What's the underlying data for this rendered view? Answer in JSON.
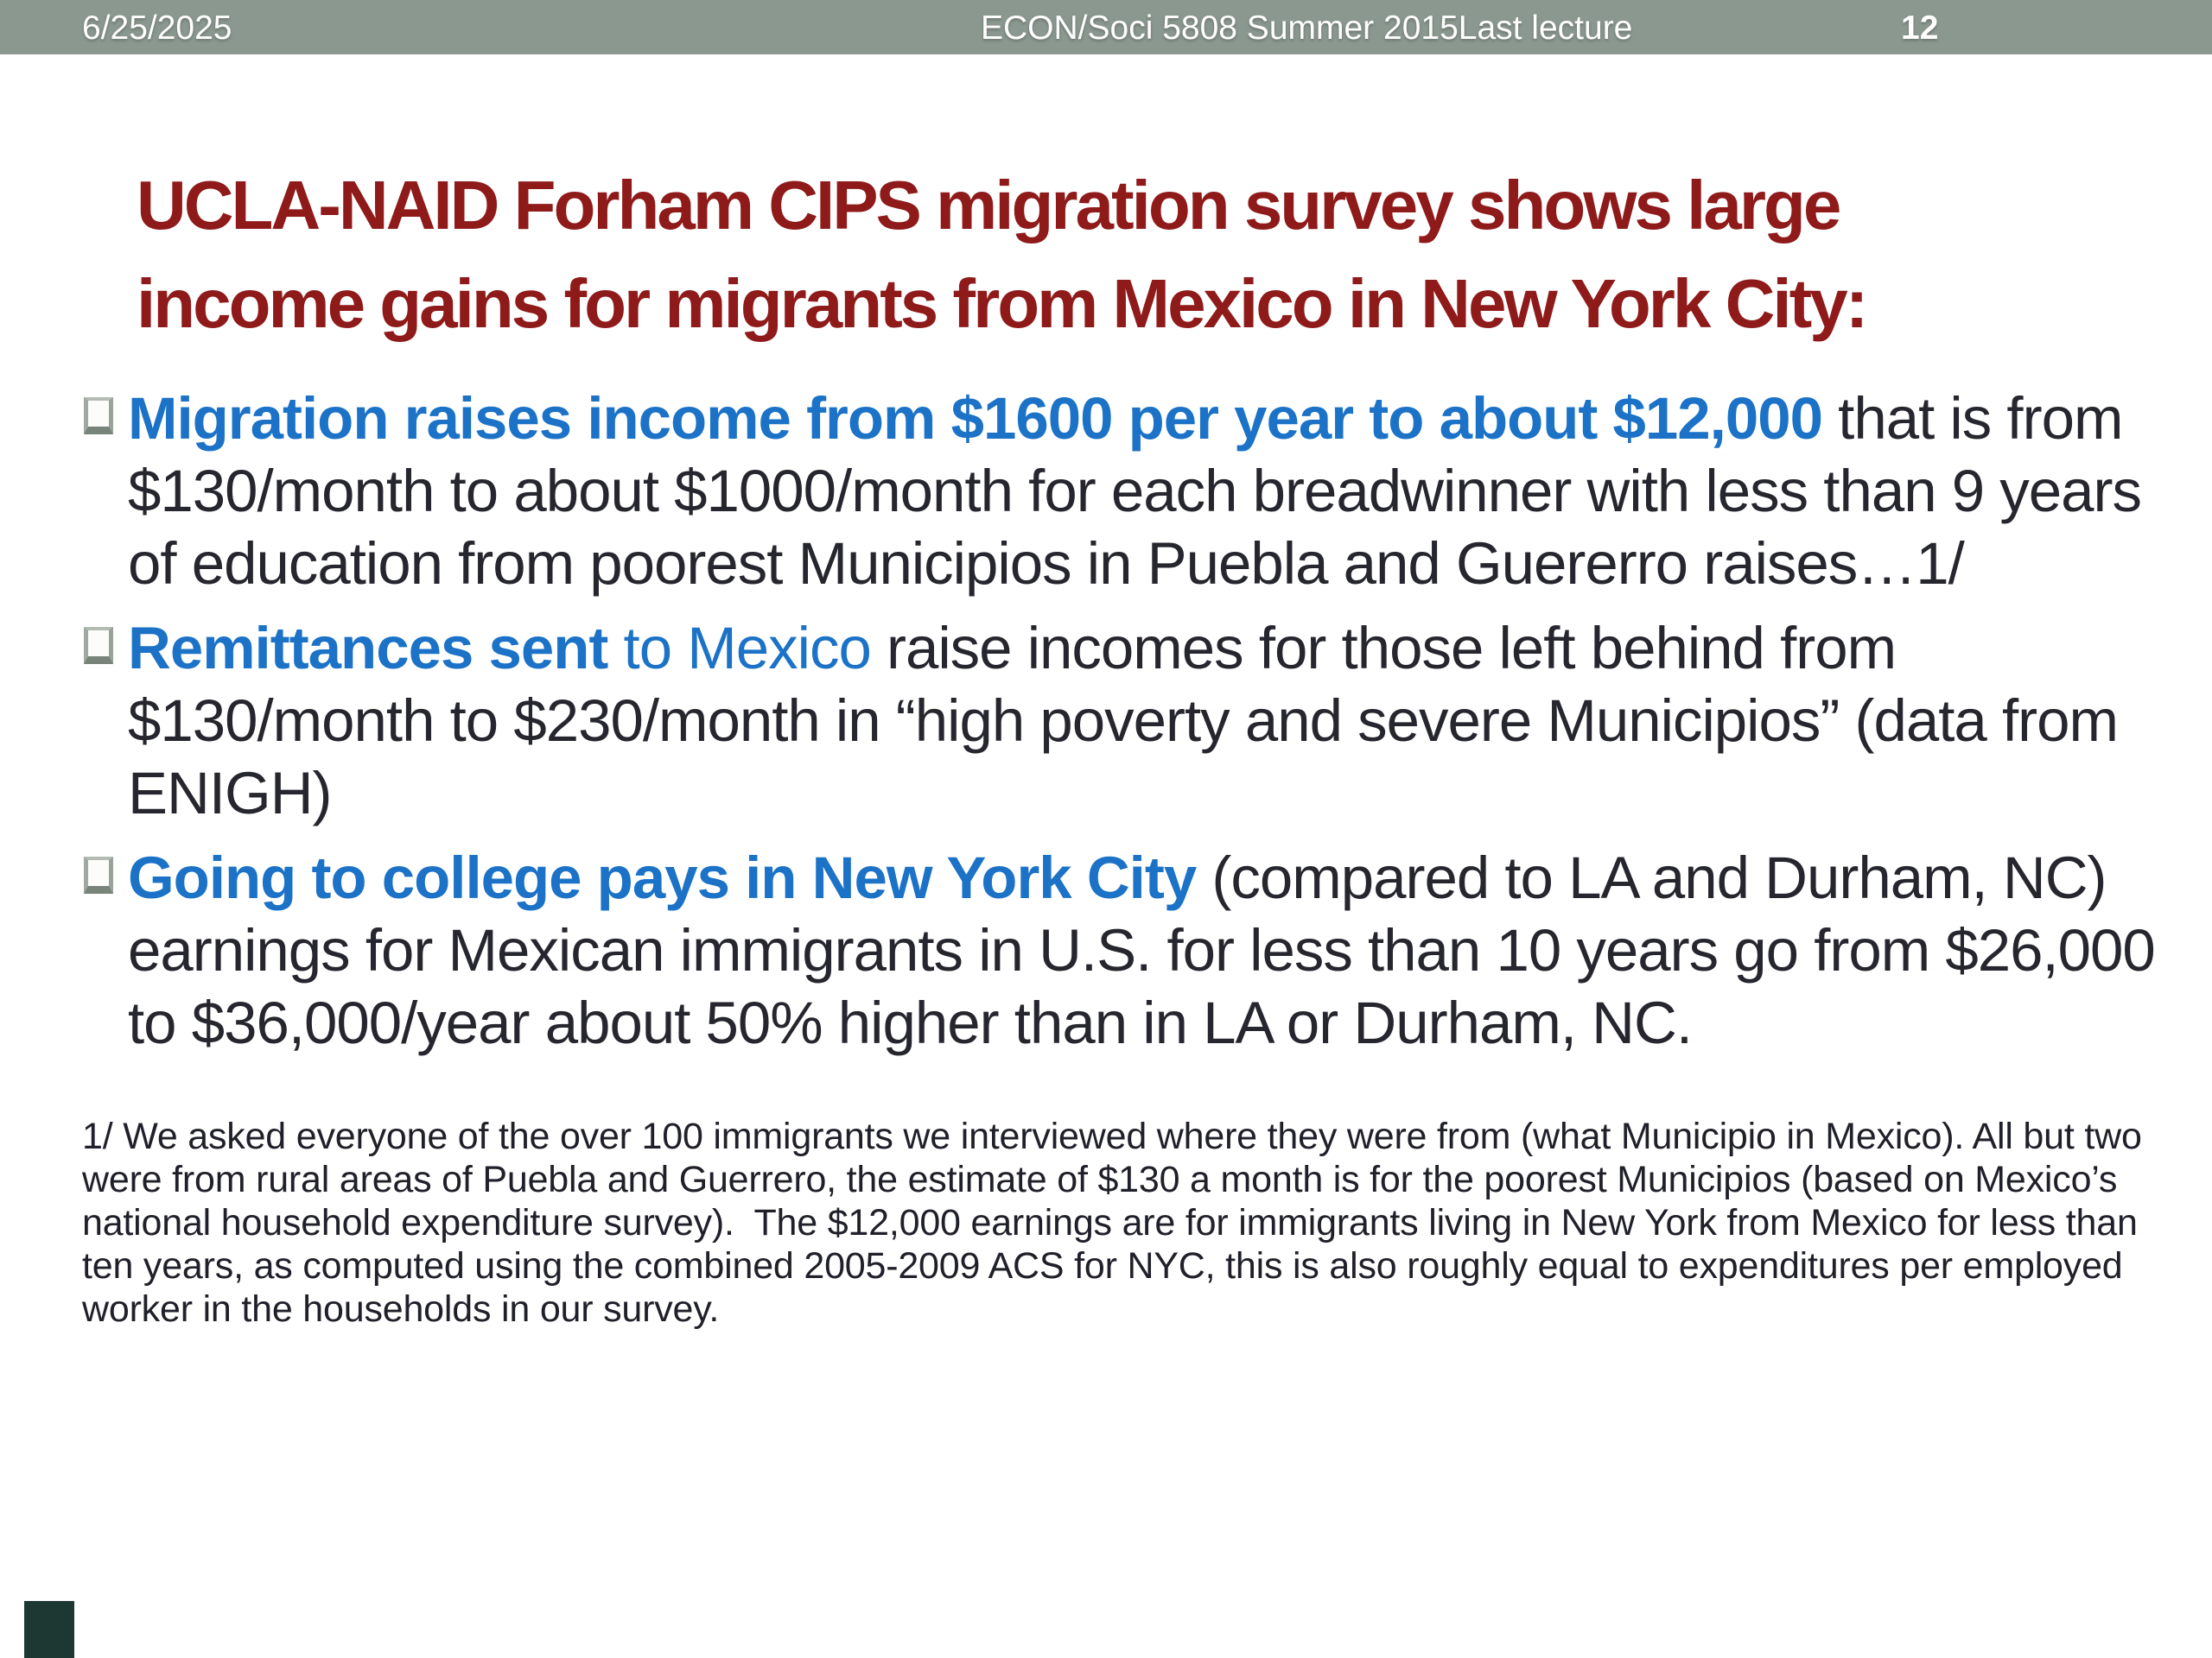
{
  "header": {
    "date": "6/25/2025",
    "course": "ECON/Soci 5808 Summer 2015Last lecture",
    "page_number": "12"
  },
  "title": {
    "lines": [
      "UCLA-NAID Forham CIPS migration survey shows large",
      "income gains for migrants from Mexico in New York City:"
    ]
  },
  "bullets": [
    {
      "segments": [
        {
          "style": "bold-blue",
          "text": "Migration raises income from $1600 per year to about $12,000"
        },
        {
          "style": "plain",
          "text": " that is from $130/month to about $1000/month for each breadwinner with less than 9 years of education from poorest Municipios in Puebla and Guererro raises…1/"
        }
      ]
    },
    {
      "segments": [
        {
          "style": "bold-blue",
          "text": "Remittances sent"
        },
        {
          "style": "blue",
          "text": " to Mexico "
        },
        {
          "style": "plain",
          "text": "raise incomes for those left behind from $130/month to $230/month in “high poverty and severe Municipios” (data from ENIGH)"
        }
      ]
    },
    {
      "segments": [
        {
          "style": "bold-blue",
          "text": "Going to college pays in New York City"
        },
        {
          "style": "plain",
          "text": " (compared to LA and Durham, NC) earnings for Mexican immigrants in U.S. for less than 10 years go from $26,000 to $36,000/year about 50% higher than in LA or Durham, NC."
        }
      ]
    }
  ],
  "footnote": "1/ We asked everyone of the over 100 immigrants we interviewed where they were from (what Municipio in Mexico). All but two were from rural areas of Puebla and Guerrero, the estimate of $130 a month is for the poorest Municipios (based on Mexico’s national household expenditure survey).  The $12,000 earnings are for immigrants living in New York from Mexico for less than ten years, as computed using the combined 2005-2009 ACS for NYC, this is also roughly equal to expenditures per employed worker in the households in our survey.",
  "colors": {
    "header-bg": "#8b988f",
    "header-text": "#ffffff",
    "title-red": "#8f1a1a",
    "accent-blue": "#1b72c6",
    "body-text": "#26262e",
    "footnote-text": "#20202a",
    "corner-square": "#1d3832"
  }
}
